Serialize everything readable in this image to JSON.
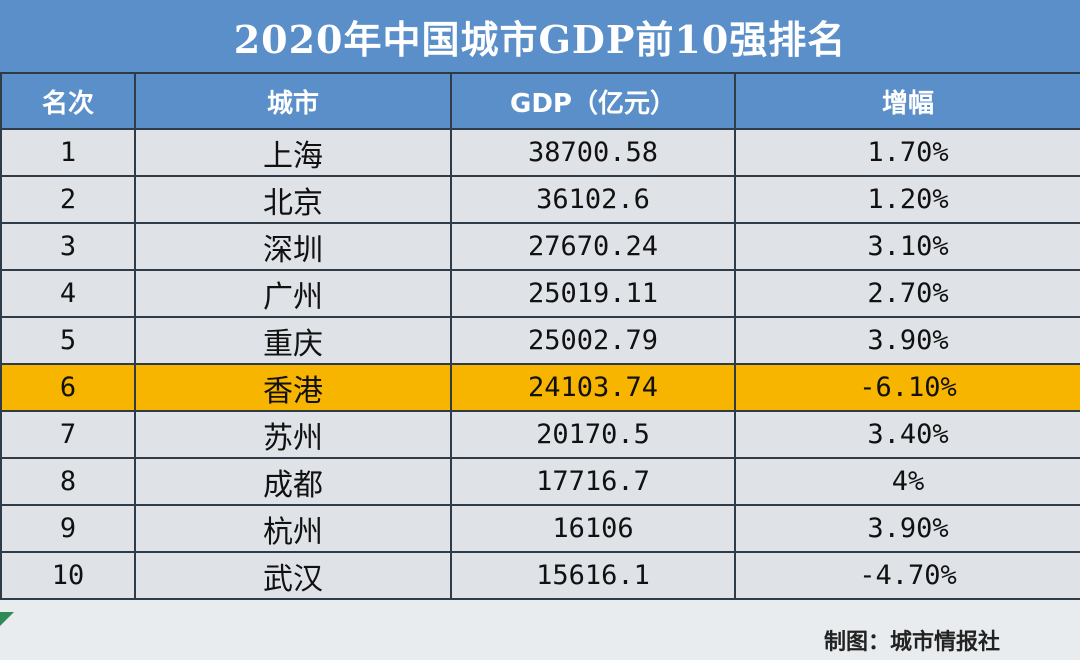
{
  "title": "2020年中国城市GDP前10强排名",
  "headers": [
    "名次",
    "城市",
    "GDP（亿元）",
    "增幅"
  ],
  "rows": [
    {
      "rank": "1",
      "city": "上海",
      "gdp": "38700.58",
      "growth": "1.70%"
    },
    {
      "rank": "2",
      "city": "北京",
      "gdp": "36102.6",
      "growth": "1.20%"
    },
    {
      "rank": "3",
      "city": "深圳",
      "gdp": "27670.24",
      "growth": "3.10%"
    },
    {
      "rank": "4",
      "city": "广州",
      "gdp": "25019.11",
      "growth": "2.70%"
    },
    {
      "rank": "5",
      "city": "重庆",
      "gdp": "25002.79",
      "growth": "3.90%"
    },
    {
      "rank": "6",
      "city": "香港",
      "gdp": "24103.74",
      "growth": "-6.10%"
    },
    {
      "rank": "7",
      "city": "苏州",
      "gdp": "20170.5",
      "growth": "3.40%"
    },
    {
      "rank": "8",
      "city": "成都",
      "gdp": "17716.7",
      "growth": "4%"
    },
    {
      "rank": "9",
      "city": "杭州",
      "gdp": "16106",
      "growth": "3.90%"
    },
    {
      "rank": "10",
      "city": "武汉",
      "gdp": "15616.1",
      "growth": "-4.70%"
    }
  ],
  "highlight_rank": "6",
  "footer": "制图：城市情报社",
  "colors": {
    "header_bg": "#5b8fc9",
    "highlight_bg": "#f7b500",
    "row_bg": "#dfe3e8"
  }
}
